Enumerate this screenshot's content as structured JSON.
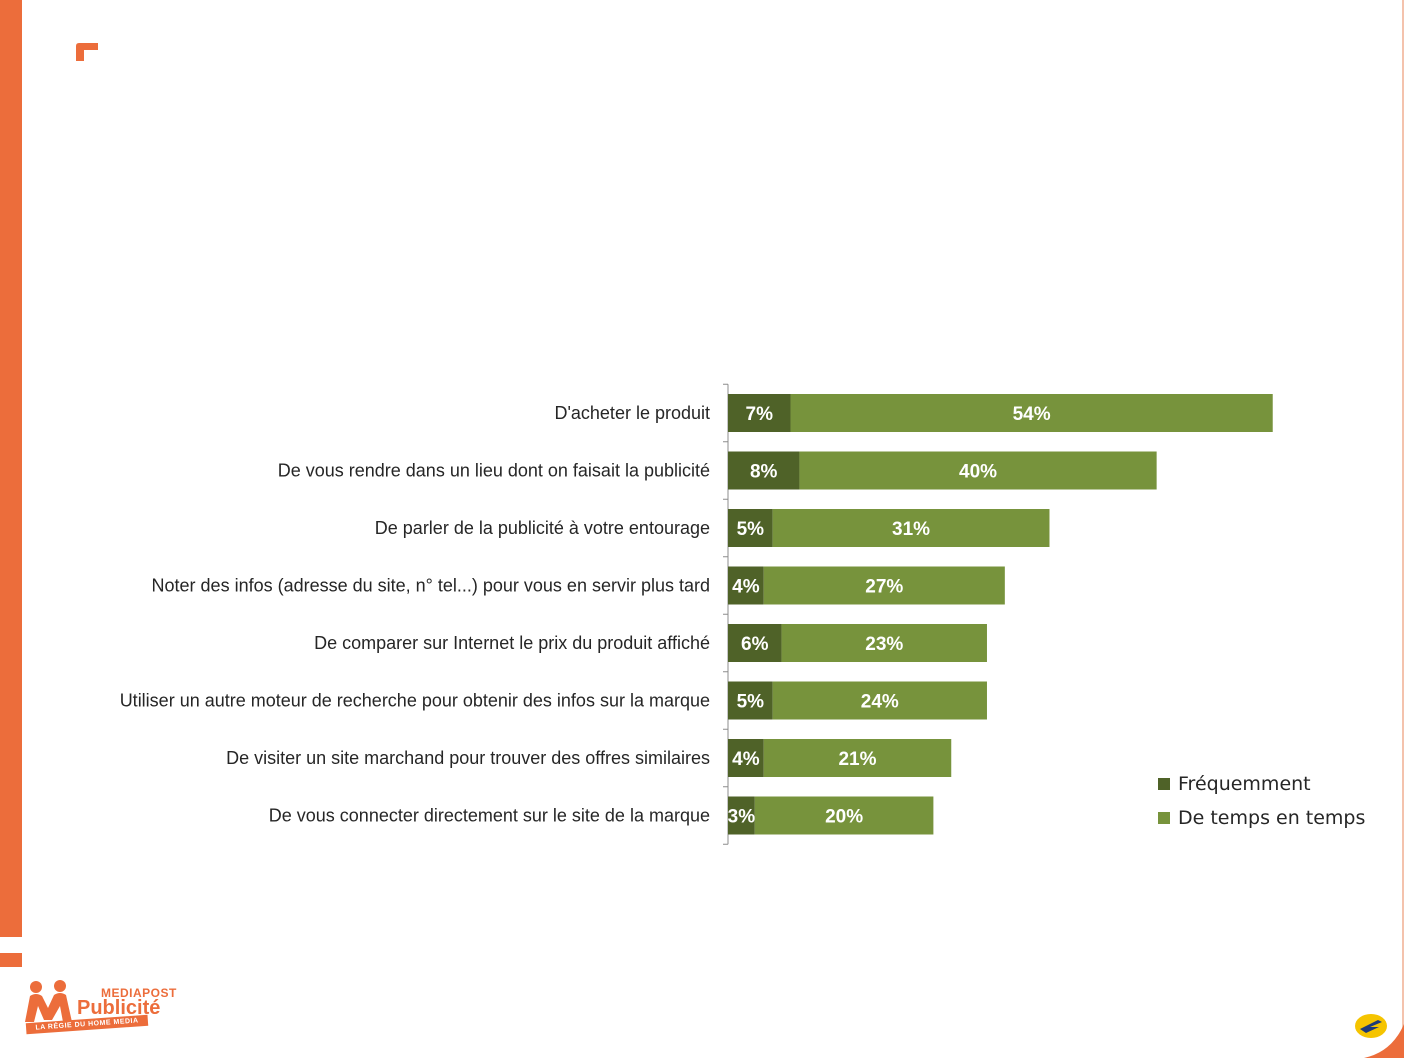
{
  "chart_data": {
    "type": "bar",
    "orientation": "horizontal",
    "stacked": true,
    "categories": [
      "D'acheter le produit",
      "De vous rendre dans un lieu dont on faisait la publicité",
      "De parler de la publicité à votre entourage",
      "Noter des infos (adresse du site, n° tel...) pour vous en servir plus tard",
      "De comparer sur Internet le prix du produit affiché",
      "Utiliser un autre moteur de recherche pour obtenir des infos sur la marque",
      "De visiter un site marchand pour trouver des offres similaires",
      "De vous connecter directement sur le site de la marque"
    ],
    "series": [
      {
        "name": "Fréquemment",
        "color": "#4f6228",
        "values": [
          7,
          8,
          5,
          4,
          6,
          5,
          4,
          3
        ]
      },
      {
        "name": "De temps en temps",
        "color": "#77933c",
        "values": [
          54,
          40,
          31,
          27,
          23,
          24,
          21,
          20
        ]
      }
    ],
    "value_suffix": "%",
    "legend_position": "right",
    "grid": false
  },
  "branding": {
    "logo_line1": "MEDIAPOST",
    "logo_line2": "Publicité",
    "logo_tagline": "LA RÉGIE DU HOME MEDIA",
    "accent_color": "#ec6d3b"
  }
}
